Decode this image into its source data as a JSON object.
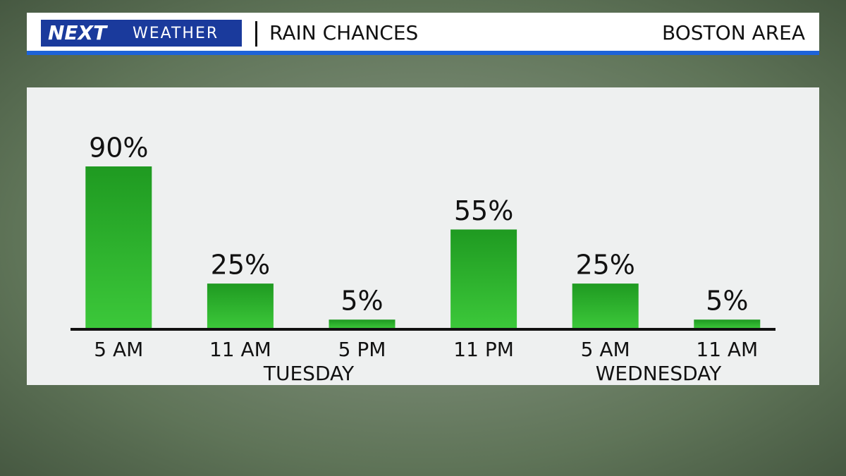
{
  "header": {
    "logo": "NEXT",
    "logo_sub": "WEATHER",
    "title": "RAIN CHANCES",
    "location": "BOSTON AREA"
  },
  "chart_data": {
    "type": "bar",
    "categories": [
      "5 AM",
      "11 AM",
      "5 PM",
      "11 PM",
      "5 AM",
      "11 AM"
    ],
    "values": [
      90,
      25,
      5,
      55,
      25,
      5
    ],
    "value_labels": [
      "90%",
      "25%",
      "5%",
      "55%",
      "25%",
      "5%"
    ],
    "groups": [
      "TUESDAY",
      "WEDNESDAY"
    ],
    "color": "#2db52d"
  }
}
